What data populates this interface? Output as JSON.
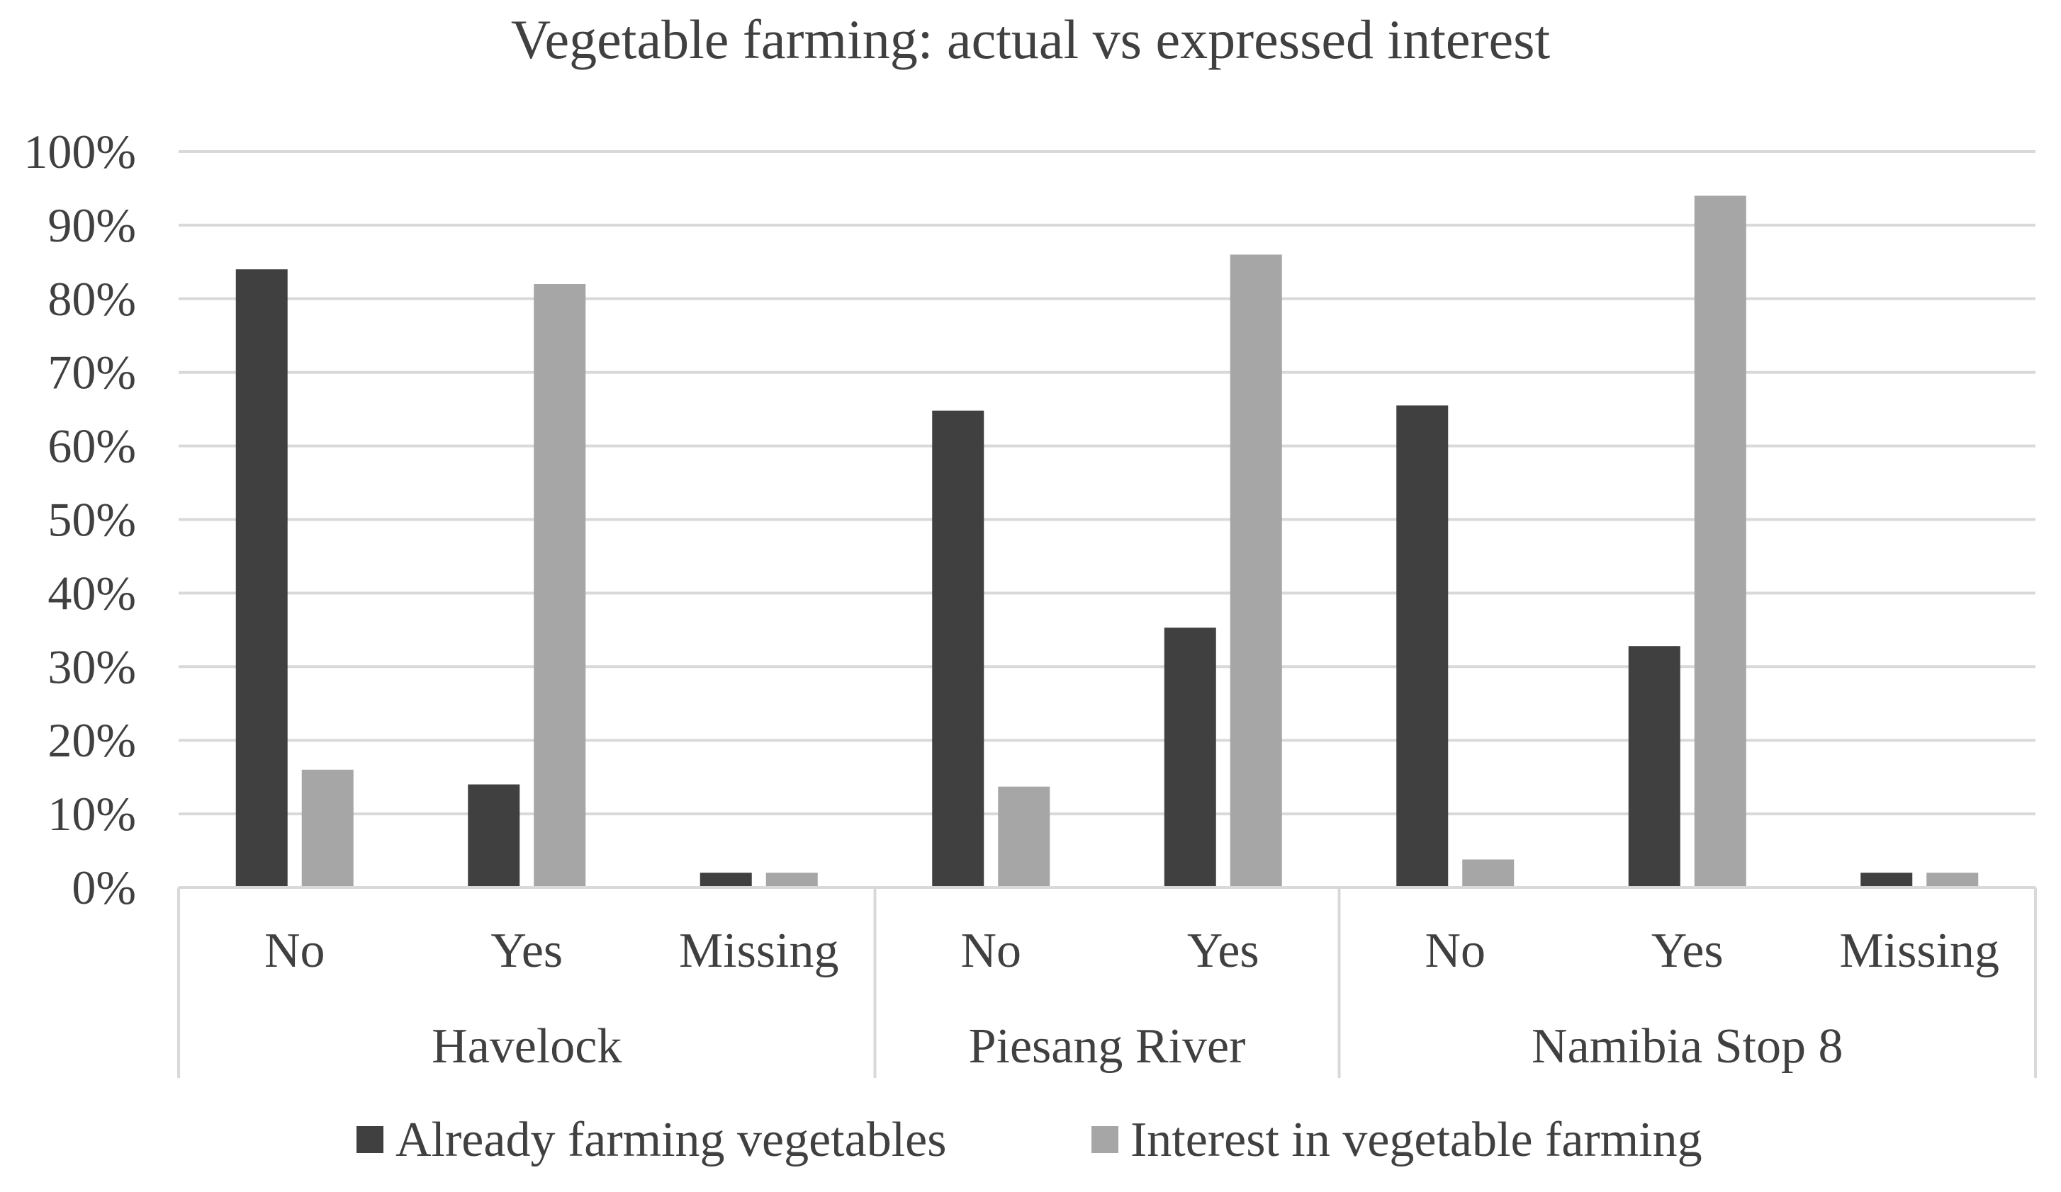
{
  "chart_data": {
    "type": "bar",
    "title": "Vegetable farming: actual vs expressed interest",
    "xlabel": "",
    "ylabel": "",
    "ylim": [
      0,
      100
    ],
    "y_tick_values": [
      0,
      10,
      20,
      30,
      40,
      50,
      60,
      70,
      80,
      90,
      100
    ],
    "y_tick_labels": [
      "0%",
      "10%",
      "20%",
      "30%",
      "40%",
      "50%",
      "60%",
      "70%",
      "80%",
      "90%",
      "100%"
    ],
    "grid": true,
    "legend_position": "bottom",
    "groups": [
      {
        "name": "Havelock",
        "categories": [
          "No",
          "Yes",
          "Missing"
        ]
      },
      {
        "name": "Piesang River",
        "categories": [
          "No",
          "Yes"
        ]
      },
      {
        "name": "Namibia Stop 8",
        "categories": [
          "No",
          "Yes",
          "Missing"
        ]
      }
    ],
    "series": [
      {
        "name": "Already farming vegetables",
        "color": "#404040",
        "values": [
          84,
          14,
          2,
          64.8,
          35.3,
          65.5,
          32.8,
          2
        ]
      },
      {
        "name": "Interest in vegetable farming",
        "color": "#a6a6a6",
        "values": [
          16,
          82,
          2,
          13.7,
          86,
          3.8,
          94,
          2
        ]
      }
    ]
  }
}
